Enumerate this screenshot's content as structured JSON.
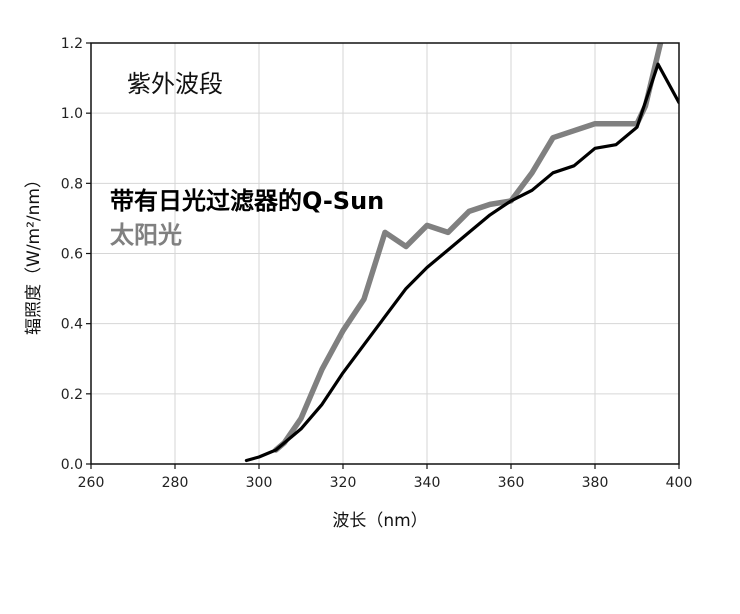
{
  "chart_data": {
    "type": "line",
    "title": "紫外波段",
    "xlabel": "波长（nm）",
    "ylabel": "辐照度（W/m²/nm）",
    "xlim": [
      260,
      400
    ],
    "ylim": [
      0,
      1.2
    ],
    "x_ticks": [
      "260",
      "280",
      "300",
      "320",
      "340",
      "360",
      "380",
      "400"
    ],
    "y_ticks": [
      "0.0",
      "0.2",
      "0.4",
      "0.6",
      "0.8",
      "1.0",
      "1.2"
    ],
    "grid": true,
    "legend_position": "left",
    "series": [
      {
        "name": "带有日光过滤器的Q-Sun",
        "color": "#000000",
        "x": [
          297,
          300,
          304,
          310,
          315,
          320,
          325,
          330,
          335,
          340,
          345,
          350,
          355,
          360,
          365,
          370,
          375,
          380,
          385,
          390,
          395,
          400
        ],
        "y": [
          0.01,
          0.02,
          0.04,
          0.1,
          0.17,
          0.26,
          0.34,
          0.42,
          0.5,
          0.56,
          0.61,
          0.66,
          0.71,
          0.75,
          0.78,
          0.83,
          0.85,
          0.9,
          0.91,
          0.96,
          1.14,
          1.03
        ]
      },
      {
        "name": "太阳光",
        "color": "#808080",
        "x": [
          304,
          306,
          310,
          315,
          320,
          325,
          330,
          335,
          340,
          345,
          350,
          355,
          360,
          365,
          370,
          375,
          380,
          385,
          390,
          392,
          396
        ],
        "y": [
          0.04,
          0.06,
          0.13,
          0.27,
          0.38,
          0.47,
          0.66,
          0.62,
          0.68,
          0.66,
          0.72,
          0.74,
          0.75,
          0.83,
          0.93,
          0.95,
          0.97,
          0.97,
          0.97,
          1.02,
          1.22
        ]
      }
    ]
  }
}
